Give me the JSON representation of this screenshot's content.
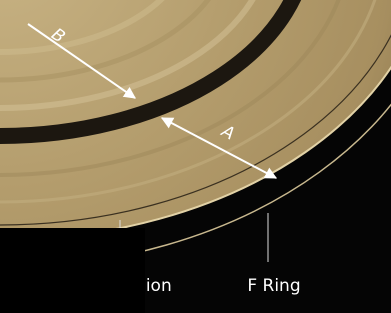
{
  "labels": {
    "ring_b": "B",
    "ring_a": "A",
    "division": "ision",
    "f_ring": "F Ring"
  }
}
